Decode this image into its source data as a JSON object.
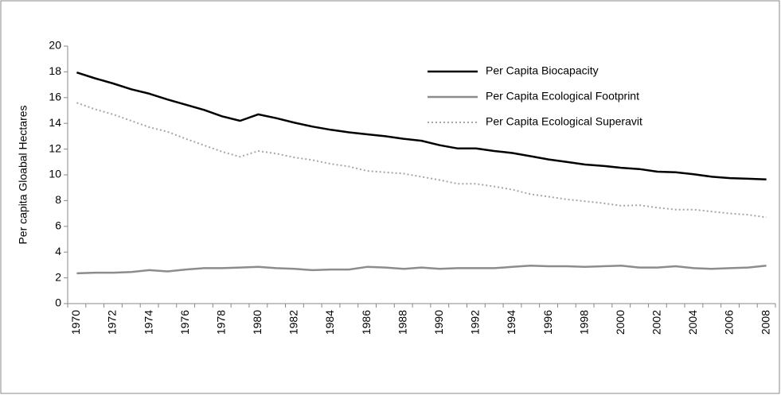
{
  "chart_data": {
    "type": "line",
    "ylabel": "Per capita Gloabal Hectares",
    "categories": [
      "1970",
      null,
      "1972",
      null,
      "1974",
      null,
      "1976",
      null,
      "1978",
      null,
      "1980",
      null,
      "1982",
      null,
      "1984",
      null,
      "1986",
      null,
      "1988",
      null,
      "1990",
      null,
      "1992",
      null,
      "1994",
      null,
      "1996",
      null,
      "1998",
      null,
      "2000",
      null,
      "2002",
      null,
      "2004",
      null,
      "2006",
      null,
      "2008"
    ],
    "series": [
      {
        "name": "Per Capita Biocapacity",
        "color": "#000000",
        "style": "solid",
        "values": [
          17.95,
          17.5,
          17.1,
          16.65,
          16.3,
          15.85,
          15.45,
          15.05,
          14.55,
          14.2,
          14.7,
          14.4,
          14.05,
          13.75,
          13.5,
          13.3,
          13.15,
          13.0,
          12.8,
          12.65,
          12.3,
          12.05,
          12.05,
          11.85,
          11.7,
          11.45,
          11.2,
          11.0,
          10.8,
          10.7,
          10.55,
          10.45,
          10.25,
          10.2,
          10.05,
          9.85,
          9.75,
          9.7,
          9.65
        ]
      },
      {
        "name": "Per Capita Ecological Footprint",
        "color": "#8c8c8c",
        "style": "solid",
        "values": [
          2.35,
          2.4,
          2.4,
          2.45,
          2.6,
          2.5,
          2.65,
          2.75,
          2.75,
          2.8,
          2.85,
          2.75,
          2.7,
          2.6,
          2.65,
          2.65,
          2.85,
          2.8,
          2.7,
          2.8,
          2.7,
          2.75,
          2.75,
          2.75,
          2.85,
          2.95,
          2.9,
          2.9,
          2.85,
          2.9,
          2.95,
          2.8,
          2.8,
          2.9,
          2.75,
          2.7,
          2.75,
          2.8,
          2.95
        ]
      },
      {
        "name": "Per Capita Ecological Superavit",
        "color": "#a6a6a6",
        "style": "dotted",
        "values": [
          15.6,
          15.1,
          14.7,
          14.2,
          13.7,
          13.35,
          12.8,
          12.3,
          11.8,
          11.4,
          11.85,
          11.65,
          11.35,
          11.15,
          10.85,
          10.65,
          10.3,
          10.2,
          10.1,
          9.85,
          9.6,
          9.3,
          9.3,
          9.1,
          8.85,
          8.5,
          8.3,
          8.1,
          7.95,
          7.8,
          7.6,
          7.65,
          7.45,
          7.3,
          7.3,
          7.15,
          7.0,
          6.9,
          6.7
        ]
      }
    ],
    "ylim": [
      0,
      20
    ],
    "yticks": [
      0,
      2,
      4,
      6,
      8,
      10,
      12,
      14,
      16,
      18,
      20
    ],
    "grid": false,
    "legend": "upper right"
  }
}
